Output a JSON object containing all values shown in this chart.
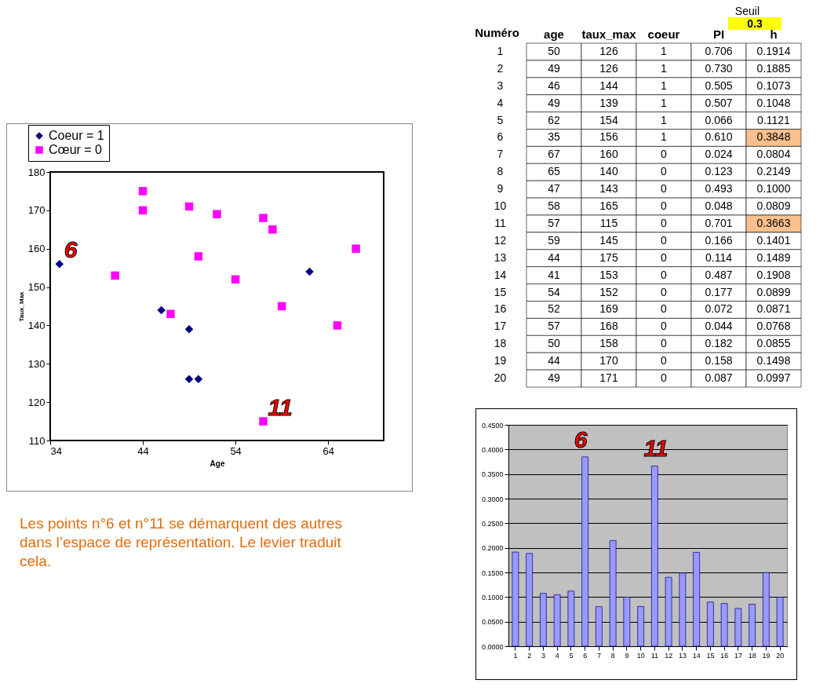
{
  "chart_data": [
    {
      "type": "scatter",
      "xlabel": "Age",
      "ylabel": "Taux_Max",
      "xlim": [
        34,
        70
      ],
      "xticks": [
        34,
        44,
        54,
        64
      ],
      "ylim": [
        110,
        180
      ],
      "yticks": [
        110,
        120,
        130,
        140,
        150,
        160,
        170,
        180
      ],
      "grid": false,
      "legend": "top left",
      "series": [
        {
          "name": "Coeur = 1",
          "color": "#000080",
          "marker": "diamond",
          "x": [
            50,
            49,
            46,
            49,
            62,
            35
          ],
          "values": [
            126,
            126,
            144,
            139,
            154,
            156
          ]
        },
        {
          "name": "Cœur = 0",
          "color": "#ff00ff",
          "marker": "square",
          "x": [
            67,
            65,
            47,
            58,
            57,
            59,
            44,
            41,
            54,
            52,
            57,
            50,
            44,
            49
          ],
          "values": [
            160,
            140,
            143,
            165,
            115,
            145,
            175,
            153,
            152,
            169,
            168,
            158,
            170,
            171
          ]
        }
      ],
      "annotations": [
        {
          "text": "6",
          "x": 35,
          "y": 156
        },
        {
          "text": "11",
          "x": 57,
          "y": 115
        },
        "Les points n°6 et n°11 se démarquent des autres dans l’espace de représentation. Le levier traduit cela."
      ]
    },
    {
      "type": "heatmap",
      "ylabel": "Numéro",
      "categories": [
        "age",
        "taux_max",
        "coeur",
        "PI",
        "h"
      ],
      "y_categories": [
        "1",
        "2",
        "3",
        "4",
        "5",
        "6",
        "7",
        "8",
        "9",
        "10",
        "11",
        "12",
        "13",
        "14",
        "15",
        "16",
        "17",
        "18",
        "19",
        "20"
      ],
      "cells": [
        [
          50,
          126,
          1,
          0.706,
          0.1914
        ],
        [
          49,
          126,
          1,
          0.73,
          0.1885
        ],
        [
          46,
          144,
          1,
          0.505,
          0.1073
        ],
        [
          49,
          139,
          1,
          0.507,
          0.1048
        ],
        [
          62,
          154,
          1,
          0.066,
          0.1121
        ],
        [
          35,
          156,
          1,
          0.61,
          0.3848
        ],
        [
          67,
          160,
          0,
          0.024,
          0.0804
        ],
        [
          65,
          140,
          0,
          0.123,
          0.2149
        ],
        [
          47,
          143,
          0,
          0.493,
          0.1
        ],
        [
          58,
          165,
          0,
          0.048,
          0.0809
        ],
        [
          57,
          115,
          0,
          0.701,
          0.3663
        ],
        [
          59,
          145,
          0,
          0.166,
          0.1401
        ],
        [
          44,
          175,
          0,
          0.114,
          0.1489
        ],
        [
          41,
          153,
          0,
          0.487,
          0.1908
        ],
        [
          54,
          152,
          0,
          0.177,
          0.0899
        ],
        [
          52,
          169,
          0,
          0.072,
          0.0871
        ],
        [
          57,
          168,
          0,
          0.044,
          0.0768
        ],
        [
          50,
          158,
          0,
          0.182,
          0.0855
        ],
        [
          44,
          170,
          0,
          0.158,
          0.1498
        ],
        [
          49,
          171,
          0,
          0.087,
          0.0997
        ]
      ],
      "cell_labels": [
        [
          "50",
          "126",
          "1",
          "0.706",
          "0.1914"
        ],
        [
          "49",
          "126",
          "1",
          "0.730",
          "0.1885"
        ],
        [
          "46",
          "144",
          "1",
          "0.505",
          "0.1073"
        ],
        [
          "49",
          "139",
          "1",
          "0.507",
          "0.1048"
        ],
        [
          "62",
          "154",
          "1",
          "0.066",
          "0.1121"
        ],
        [
          "35",
          "156",
          "1",
          "0.610",
          "0.3848"
        ],
        [
          "67",
          "160",
          "0",
          "0.024",
          "0.0804"
        ],
        [
          "65",
          "140",
          "0",
          "0.123",
          "0.2149"
        ],
        [
          "47",
          "143",
          "0",
          "0.493",
          "0.1000"
        ],
        [
          "58",
          "165",
          "0",
          "0.048",
          "0.0809"
        ],
        [
          "57",
          "115",
          "0",
          "0.701",
          "0.3663"
        ],
        [
          "59",
          "145",
          "0",
          "0.166",
          "0.1401"
        ],
        [
          "44",
          "175",
          "0",
          "0.114",
          "0.1489"
        ],
        [
          "41",
          "153",
          "0",
          "0.487",
          "0.1908"
        ],
        [
          "54",
          "152",
          "0",
          "0.177",
          "0.0899"
        ],
        [
          "52",
          "169",
          "0",
          "0.072",
          "0.0871"
        ],
        [
          "57",
          "168",
          "0",
          "0.044",
          "0.0768"
        ],
        [
          "50",
          "158",
          "0",
          "0.182",
          "0.0855"
        ],
        [
          "44",
          "170",
          "0",
          "0.158",
          "0.1498"
        ],
        [
          "49",
          "171",
          "0",
          "0.087",
          "0.0997"
        ]
      ],
      "colors": [
        [
          "#ffffff",
          "#ffffff",
          "#ffffff",
          "#ffffff",
          "#ffffff"
        ],
        [
          "#ffffff",
          "#ffffff",
          "#ffffff",
          "#ffffff",
          "#ffffff"
        ],
        [
          "#ffffff",
          "#ffffff",
          "#ffffff",
          "#ffffff",
          "#ffffff"
        ],
        [
          "#ffffff",
          "#ffffff",
          "#ffffff",
          "#ffffff",
          "#ffffff"
        ],
        [
          "#ffffff",
          "#ffffff",
          "#ffffff",
          "#ffffff",
          "#ffffff"
        ],
        [
          "#ffffff",
          "#ffffff",
          "#ffffff",
          "#ffffff",
          "#fbc08e"
        ],
        [
          "#ffffff",
          "#ffffff",
          "#ffffff",
          "#ffffff",
          "#ffffff"
        ],
        [
          "#ffffff",
          "#ffffff",
          "#ffffff",
          "#ffffff",
          "#ffffff"
        ],
        [
          "#ffffff",
          "#ffffff",
          "#ffffff",
          "#ffffff",
          "#ffffff"
        ],
        [
          "#ffffff",
          "#ffffff",
          "#ffffff",
          "#ffffff",
          "#ffffff"
        ],
        [
          "#ffffff",
          "#ffffff",
          "#ffffff",
          "#ffffff",
          "#fbc08e"
        ],
        [
          "#ffffff",
          "#ffffff",
          "#ffffff",
          "#ffffff",
          "#ffffff"
        ],
        [
          "#ffffff",
          "#ffffff",
          "#ffffff",
          "#ffffff",
          "#ffffff"
        ],
        [
          "#ffffff",
          "#ffffff",
          "#ffffff",
          "#ffffff",
          "#ffffff"
        ],
        [
          "#ffffff",
          "#ffffff",
          "#ffffff",
          "#ffffff",
          "#ffffff"
        ],
        [
          "#ffffff",
          "#ffffff",
          "#ffffff",
          "#ffffff",
          "#ffffff"
        ],
        [
          "#ffffff",
          "#ffffff",
          "#ffffff",
          "#ffffff",
          "#ffffff"
        ],
        [
          "#ffffff",
          "#ffffff",
          "#ffffff",
          "#ffffff",
          "#ffffff"
        ],
        [
          "#ffffff",
          "#ffffff",
          "#ffffff",
          "#ffffff",
          "#ffffff"
        ],
        [
          "#ffffff",
          "#ffffff",
          "#ffffff",
          "#ffffff",
          "#ffffff"
        ]
      ],
      "annotations": [
        "Seuil",
        "0.3"
      ]
    },
    {
      "type": "bar",
      "categories": [
        "1",
        "2",
        "3",
        "4",
        "5",
        "6",
        "7",
        "8",
        "9",
        "10",
        "11",
        "12",
        "13",
        "14",
        "15",
        "16",
        "17",
        "18",
        "19",
        "20"
      ],
      "values": [
        0.1914,
        0.1885,
        0.1073,
        0.1048,
        0.1121,
        0.3848,
        0.0804,
        0.2149,
        0.1,
        0.0809,
        0.3663,
        0.1401,
        0.1489,
        0.1908,
        0.0899,
        0.0871,
        0.0768,
        0.0855,
        0.1498,
        0.0997
      ],
      "color": "#9999ff",
      "ylim": [
        0,
        0.45
      ],
      "grid": "y",
      "yticks": [
        {
          "value": 0,
          "label": "0.0000"
        },
        {
          "value": 0.05,
          "label": "0.0500"
        },
        {
          "value": 0.1,
          "label": "0.1000"
        },
        {
          "value": 0.15,
          "label": "0.1500"
        },
        {
          "value": 0.2,
          "label": "0.2000"
        },
        {
          "value": 0.25,
          "label": "0.2500"
        },
        {
          "value": 0.3,
          "label": "0.3000"
        },
        {
          "value": 0.35,
          "label": "0.3500"
        },
        {
          "value": 0.4,
          "label": "0.4000"
        },
        {
          "value": 0.45,
          "label": "0.4500"
        }
      ],
      "annotations": [
        {
          "text": "6",
          "x": "6",
          "y": 0.3848
        },
        {
          "text": "11",
          "x": "11",
          "y": 0.3663
        }
      ]
    }
  ]
}
